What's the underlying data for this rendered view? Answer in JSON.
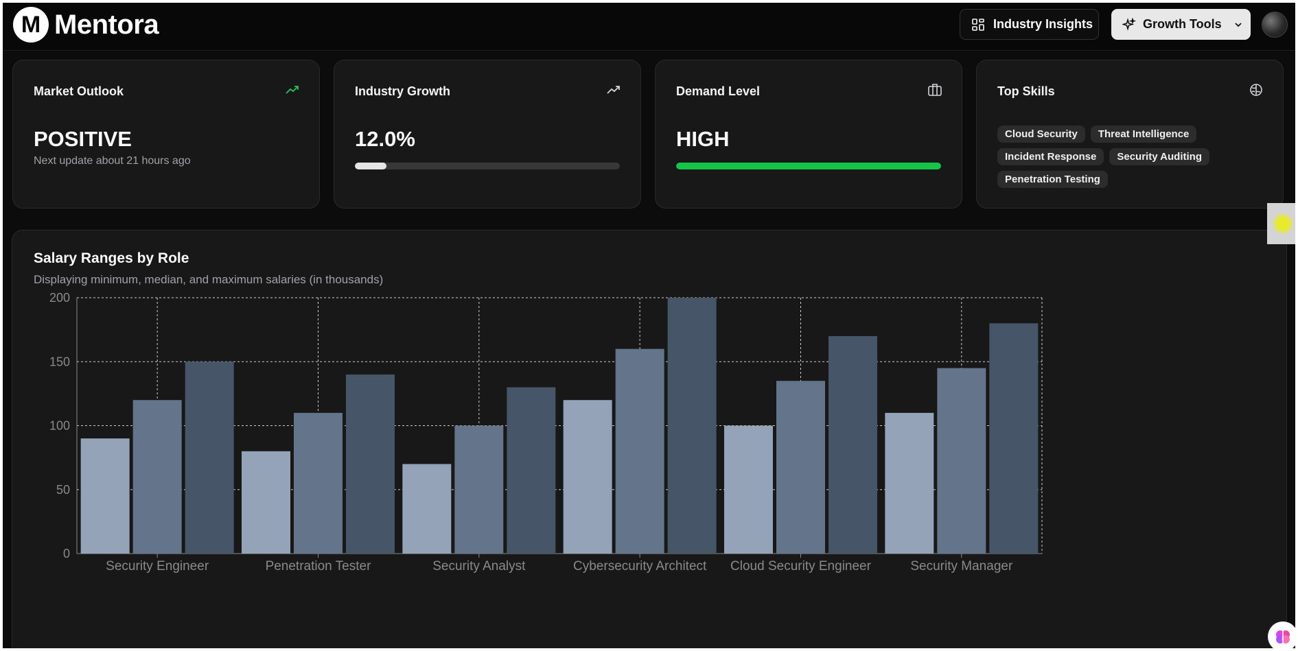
{
  "header": {
    "brand": "Mentora",
    "brand_initial": "M",
    "insights_label": "Industry Insights",
    "growth_label": "Growth Tools"
  },
  "cards": {
    "market_outlook": {
      "title": "Market Outlook",
      "value": "POSITIVE",
      "subtext": "Next update about 21 hours ago",
      "icon": "trending-up-icon",
      "icon_color": "#22c55e"
    },
    "industry_growth": {
      "title": "Industry Growth",
      "value": "12.0%",
      "progress": 0.12,
      "icon": "trending-up-icon"
    },
    "demand_level": {
      "title": "Demand Level",
      "value": "HIGH",
      "progress": 1.0,
      "bar_color": "#16c44a",
      "icon": "briefcase-icon"
    },
    "top_skills": {
      "title": "Top Skills",
      "icon": "brain-icon",
      "skills": [
        "Cloud Security",
        "Threat Intelligence",
        "Incident Response",
        "Security Auditing",
        "Penetration Testing"
      ]
    }
  },
  "chart_section": {
    "title": "Salary Ranges by Role",
    "subtitle": "Displaying minimum, median, and maximum salaries (in thousands)"
  },
  "chart_data": {
    "type": "bar",
    "categories": [
      "Security Engineer",
      "Penetration Tester",
      "Security Analyst",
      "Cybersecurity Architect",
      "Cloud Security Engineer",
      "Security Manager"
    ],
    "series": [
      {
        "values": [
          90,
          80,
          70,
          120,
          100,
          110
        ],
        "color": "#94a3b8"
      },
      {
        "values": [
          120,
          110,
          100,
          160,
          135,
          145
        ],
        "color": "#64748b"
      },
      {
        "values": [
          150,
          140,
          130,
          200,
          170,
          180
        ],
        "color": "#475569"
      }
    ],
    "yticks": [
      0,
      50,
      100,
      150,
      200
    ],
    "ylim": [
      0,
      200
    ],
    "grid": true
  }
}
